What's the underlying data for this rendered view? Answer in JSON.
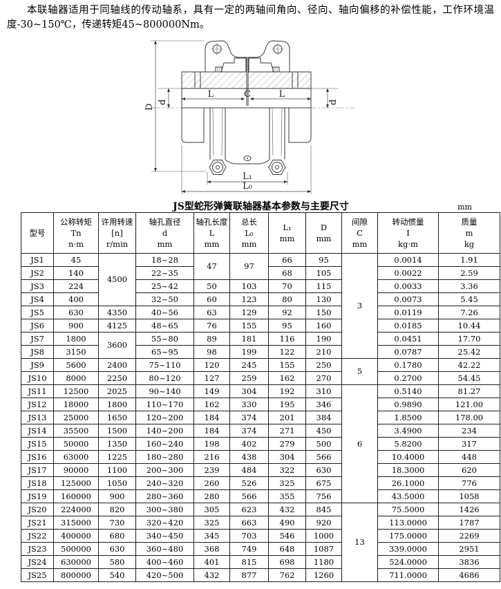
{
  "intro": {
    "text": "本联轴器适用于同轴线的传动轴系，具有一定的两轴间角向、径向、轴向偏移的补偿性能，工作环境温度-30~150℃，传递转矩45~800000Nm。"
  },
  "drawing": {
    "labels": {
      "D": "D",
      "d_left": "d",
      "d_right": "d",
      "L_left": "L",
      "C": "C",
      "L_right": "L",
      "L1": "L₁",
      "L0": "L₀"
    }
  },
  "table": {
    "title": "JS型蛇形弹簧联轴器基本参数与主要尺寸",
    "unit_note": "mm",
    "headers": [
      {
        "id": "model",
        "lines": [
          "型号"
        ]
      },
      {
        "id": "torque",
        "lines": [
          "公称转矩",
          "Tn",
          "n·m"
        ]
      },
      {
        "id": "speed",
        "lines": [
          "许用转速",
          "[n]",
          "r/min"
        ]
      },
      {
        "id": "bore-d",
        "lines": [
          "轴孔直径",
          "d",
          "mm"
        ]
      },
      {
        "id": "bore-l",
        "lines": [
          "轴孔长度",
          "L",
          "mm"
        ]
      },
      {
        "id": "total-l",
        "lines": [
          "总长",
          "L₀",
          "mm"
        ]
      },
      {
        "id": "l1",
        "lines": [
          "L₁",
          "mm"
        ]
      },
      {
        "id": "big-d",
        "lines": [
          "D",
          "mm"
        ]
      },
      {
        "id": "gap-c",
        "lines": [
          "间隙",
          "C",
          "mm"
        ]
      },
      {
        "id": "inertia",
        "lines": [
          "转动惯量",
          "I",
          "kg·m"
        ]
      },
      {
        "id": "mass",
        "lines": [
          "质量",
          "m",
          "kg"
        ]
      }
    ],
    "rows": [
      [
        "JS1",
        "45",
        {
          "v": "4500",
          "rs": 4
        },
        "18~28",
        {
          "v": "47",
          "rs": 2
        },
        {
          "v": "97",
          "rs": 2
        },
        "66",
        "95",
        {
          "v": "3",
          "rs": 8
        },
        "0.0014",
        "1.91"
      ],
      [
        "JS2",
        "140",
        "22~35",
        "68",
        "105",
        "0.0022",
        "2.59"
      ],
      [
        "JS3",
        "224",
        "25~42",
        "50",
        "103",
        "70",
        "115",
        "0.0033",
        "3.36"
      ],
      [
        "JS4",
        "400",
        "32~50",
        "60",
        "123",
        "80",
        "130",
        "0.0073",
        "5.45"
      ],
      [
        "JS5",
        "630",
        "4350",
        "40~56",
        "63",
        "129",
        "92",
        "150",
        "0.0119",
        "7.26"
      ],
      [
        "JS6",
        "900",
        "4125",
        "48~65",
        "76",
        "155",
        "95",
        "160",
        "0.0185",
        "10.44"
      ],
      [
        "JS7",
        "1800",
        {
          "v": "3600",
          "rs": 2
        },
        "55~80",
        "89",
        "181",
        "116",
        "190",
        "0.0451",
        "17.70"
      ],
      [
        "JS8",
        "3150",
        "65~95",
        "98",
        "199",
        "122",
        "210",
        "0.0787",
        "25.42"
      ],
      [
        "JS9",
        "5600",
        "2400",
        "75~110",
        "120",
        "245",
        "155",
        "250",
        {
          "v": "5",
          "rs": 2
        },
        "0.1780",
        "42.22"
      ],
      [
        "JS10",
        "8000",
        "2250",
        "80~120",
        "127",
        "259",
        "162",
        "270",
        "0.2700",
        "54.45"
      ],
      [
        "JS11",
        "12500",
        "2025",
        "90~140",
        "149",
        "304",
        "192",
        "310",
        {
          "v": "6",
          "rs": 9
        },
        "0.5140",
        "81.27"
      ],
      [
        "JS12",
        "18000",
        "1800",
        "110~170",
        "162",
        "330",
        "195",
        "346",
        "0.9890",
        "121.00"
      ],
      [
        "JS13",
        "25000",
        "1650",
        "120~200",
        "184",
        "374",
        "201",
        "384",
        "1.8500",
        "178.00"
      ],
      [
        "JS14",
        "35500",
        "1500",
        "140~200",
        "184",
        "374",
        "271",
        "450",
        "3.4900",
        "234"
      ],
      [
        "JS15",
        "50000",
        "1350",
        "160~240",
        "198",
        "402",
        "279",
        "500",
        "5.8200",
        "317"
      ],
      [
        "JS16",
        "63000",
        "1225",
        "180~280",
        "216",
        "438",
        "304",
        "566",
        "10.4000",
        "448"
      ],
      [
        "JS17",
        "90000",
        "1100",
        "200~300",
        "239",
        "484",
        "322",
        "630",
        "18.3000",
        "620"
      ],
      [
        "JS18",
        "125000",
        "1050",
        "240~320",
        "260",
        "526",
        "325",
        "675",
        "26.1000",
        "776"
      ],
      [
        "JS19",
        "160000",
        "900",
        "280~360",
        "280",
        "566",
        "355",
        "756",
        "43.5000",
        "1058"
      ],
      [
        "JS20",
        "224000",
        "820",
        "300~380",
        "305",
        "623",
        "432",
        "845",
        {
          "v": "13",
          "rs": 6
        },
        "75.5000",
        "1426"
      ],
      [
        "JS21",
        "315000",
        "730",
        "320~420",
        "325",
        "663",
        "490",
        "920",
        "113.0000",
        "1787"
      ],
      [
        "JS22",
        "400000",
        "680",
        "340~450",
        "345",
        "703",
        "546",
        "1000",
        "175.0000",
        "2269"
      ],
      [
        "JS23",
        "500000",
        "630",
        "360~480",
        "368",
        "749",
        "648",
        "1087",
        "339.0000",
        "2951"
      ],
      [
        "JS24",
        "630000",
        "580",
        "400~460",
        "401",
        "815",
        "698",
        "1180",
        "524.0000",
        "3836"
      ],
      [
        "JS25",
        "800000",
        "540",
        "420~500",
        "432",
        "877",
        "762",
        "1260",
        "711.0000",
        "4686"
      ]
    ]
  }
}
